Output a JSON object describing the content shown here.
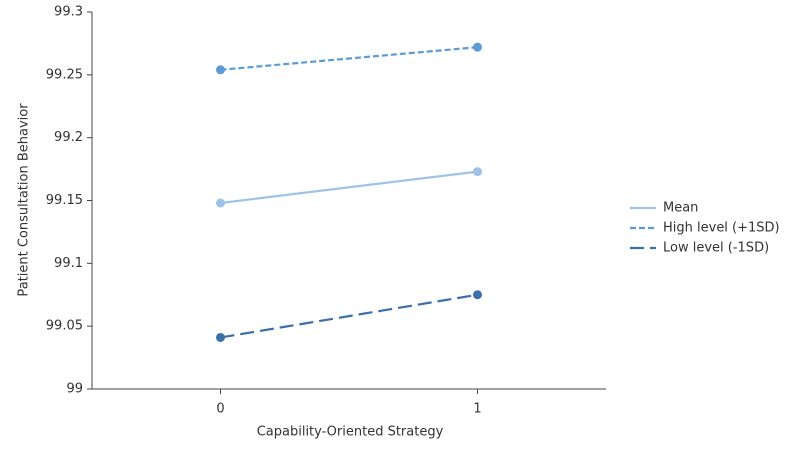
{
  "chart_data": {
    "type": "line",
    "x_label": "Capability-Oriented Strategy",
    "y_label": "Patient Consultation Behavior",
    "x": [
      0,
      1
    ],
    "xlim": [
      -0.5,
      1.5
    ],
    "xticks": [
      0,
      1
    ],
    "ylim": [
      99,
      99.3
    ],
    "yticks": [
      99,
      99.05,
      99.1,
      99.15,
      99.2,
      99.25,
      99.3
    ],
    "legend": "right",
    "series": [
      {
        "name": "Mean",
        "color": "#9dc3e6",
        "dash": "solid",
        "values": [
          99.148,
          99.173
        ]
      },
      {
        "name": "High level (+1SD)",
        "color": "#5b9bd5",
        "dash": "short",
        "values": [
          99.254,
          99.272
        ]
      },
      {
        "name": "Low level (-1SD)",
        "color": "#3a6fa8",
        "dash": "long",
        "values": [
          99.041,
          99.075
        ]
      }
    ]
  }
}
